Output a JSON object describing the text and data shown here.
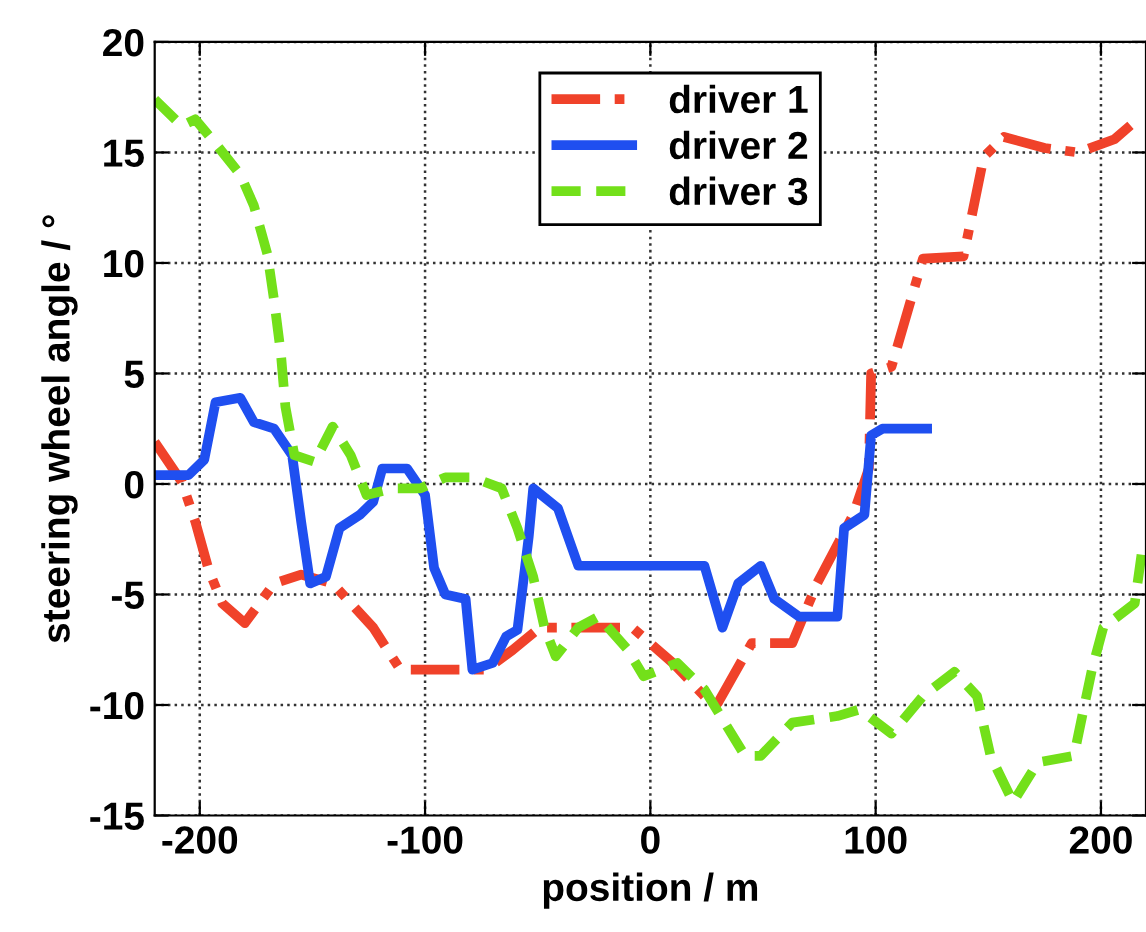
{
  "chart_data": {
    "type": "line",
    "xlabel": "position / m",
    "ylabel": "steering wheel angle / °",
    "xlim": [
      -220,
      220
    ],
    "xticks": [
      -200,
      -100,
      0,
      100,
      200
    ],
    "ylim": [
      -15,
      20
    ],
    "yticks": [
      -15,
      -10,
      -5,
      0,
      5,
      10,
      15,
      20
    ],
    "grid": true,
    "legend": "top",
    "marker": "none",
    "series": [
      {
        "name": "driver 1",
        "color": "#f0422a",
        "line_style": "dashdot",
        "x": [
          -220,
          -208,
          -202,
          -196,
          -190,
          -180,
          -167,
          -155,
          -141,
          -123,
          -111,
          -91,
          -73,
          -61,
          -49,
          -30,
          -8,
          10,
          24,
          30,
          45,
          63,
          74,
          90,
          97,
          98,
          107,
          121,
          139,
          148,
          157,
          175,
          190,
          206,
          214
        ],
        "values": [
          1.9,
          0.1,
          -1.7,
          -3.9,
          -5.4,
          -6.3,
          -4.5,
          -4.1,
          -4.5,
          -6.5,
          -8.4,
          -8.4,
          -8.4,
          -7.5,
          -6.5,
          -6.5,
          -6.5,
          -8.1,
          -9.6,
          -9.9,
          -7.2,
          -7.2,
          -4.5,
          -1.4,
          0.7,
          5,
          5.3,
          10.2,
          10.3,
          14.8,
          15.7,
          15.2,
          15,
          15.6,
          16.3
        ]
      },
      {
        "name": "driver 2",
        "color": "#1f4ff0",
        "line_style": "solid",
        "x": [
          -220,
          -205,
          -198,
          -193,
          -182,
          -176,
          -167,
          -159,
          -155,
          -151,
          -144,
          -138,
          -129,
          -123,
          -119,
          -108,
          -100,
          -96,
          -91,
          -82,
          -79,
          -70,
          -64,
          -59,
          -54,
          -52,
          -41,
          -32,
          24,
          32,
          39,
          49,
          55,
          66,
          83,
          86,
          95,
          98,
          103,
          125
        ],
        "values": [
          0.4,
          0.4,
          1.1,
          3.7,
          3.9,
          2.8,
          2.5,
          1.3,
          -1.7,
          -4.5,
          -4.2,
          -2,
          -1.4,
          -0.8,
          0.7,
          0.7,
          -0.5,
          -3.8,
          -5,
          -5.2,
          -8.4,
          -8.1,
          -6.9,
          -6.6,
          -2.4,
          -0.2,
          -1.1,
          -3.7,
          -3.7,
          -6.5,
          -4.5,
          -3.7,
          -5.2,
          -6,
          -6,
          -2,
          -1.4,
          2.2,
          2.5,
          2.5
        ]
      },
      {
        "name": "driver 3",
        "color": "#73e01a",
        "line_style": "dashed",
        "x": [
          -220,
          -208,
          -202,
          -193,
          -182,
          -176,
          -170,
          -167,
          -164,
          -162,
          -158,
          -149,
          -141,
          -133,
          -126,
          -114,
          -102,
          -91,
          -79,
          -66,
          -59,
          -52,
          -47,
          -42,
          -32,
          -23,
          -10,
          -3,
          12,
          24,
          33,
          42,
          49,
          63,
          83,
          93,
          107,
          121,
          135,
          145,
          151,
          161,
          172,
          188,
          196,
          201,
          215,
          218
        ],
        "values": [
          17.4,
          16.2,
          16.5,
          15.4,
          14,
          12.6,
          10.4,
          8.3,
          5.9,
          3.5,
          1.3,
          1,
          2.6,
          1.3,
          -0.5,
          -0.2,
          -0.2,
          0.3,
          0.3,
          -0.2,
          -2,
          -4.2,
          -6.5,
          -7.8,
          -6.5,
          -6,
          -7.5,
          -8.7,
          -8.1,
          -9.3,
          -10.8,
          -12.3,
          -12.3,
          -10.8,
          -10.5,
          -10.2,
          -11.3,
          -9.6,
          -8.5,
          -9.6,
          -12.3,
          -14.4,
          -12.6,
          -12.3,
          -8.4,
          -6.5,
          -5.4,
          -3.2
        ]
      }
    ]
  }
}
